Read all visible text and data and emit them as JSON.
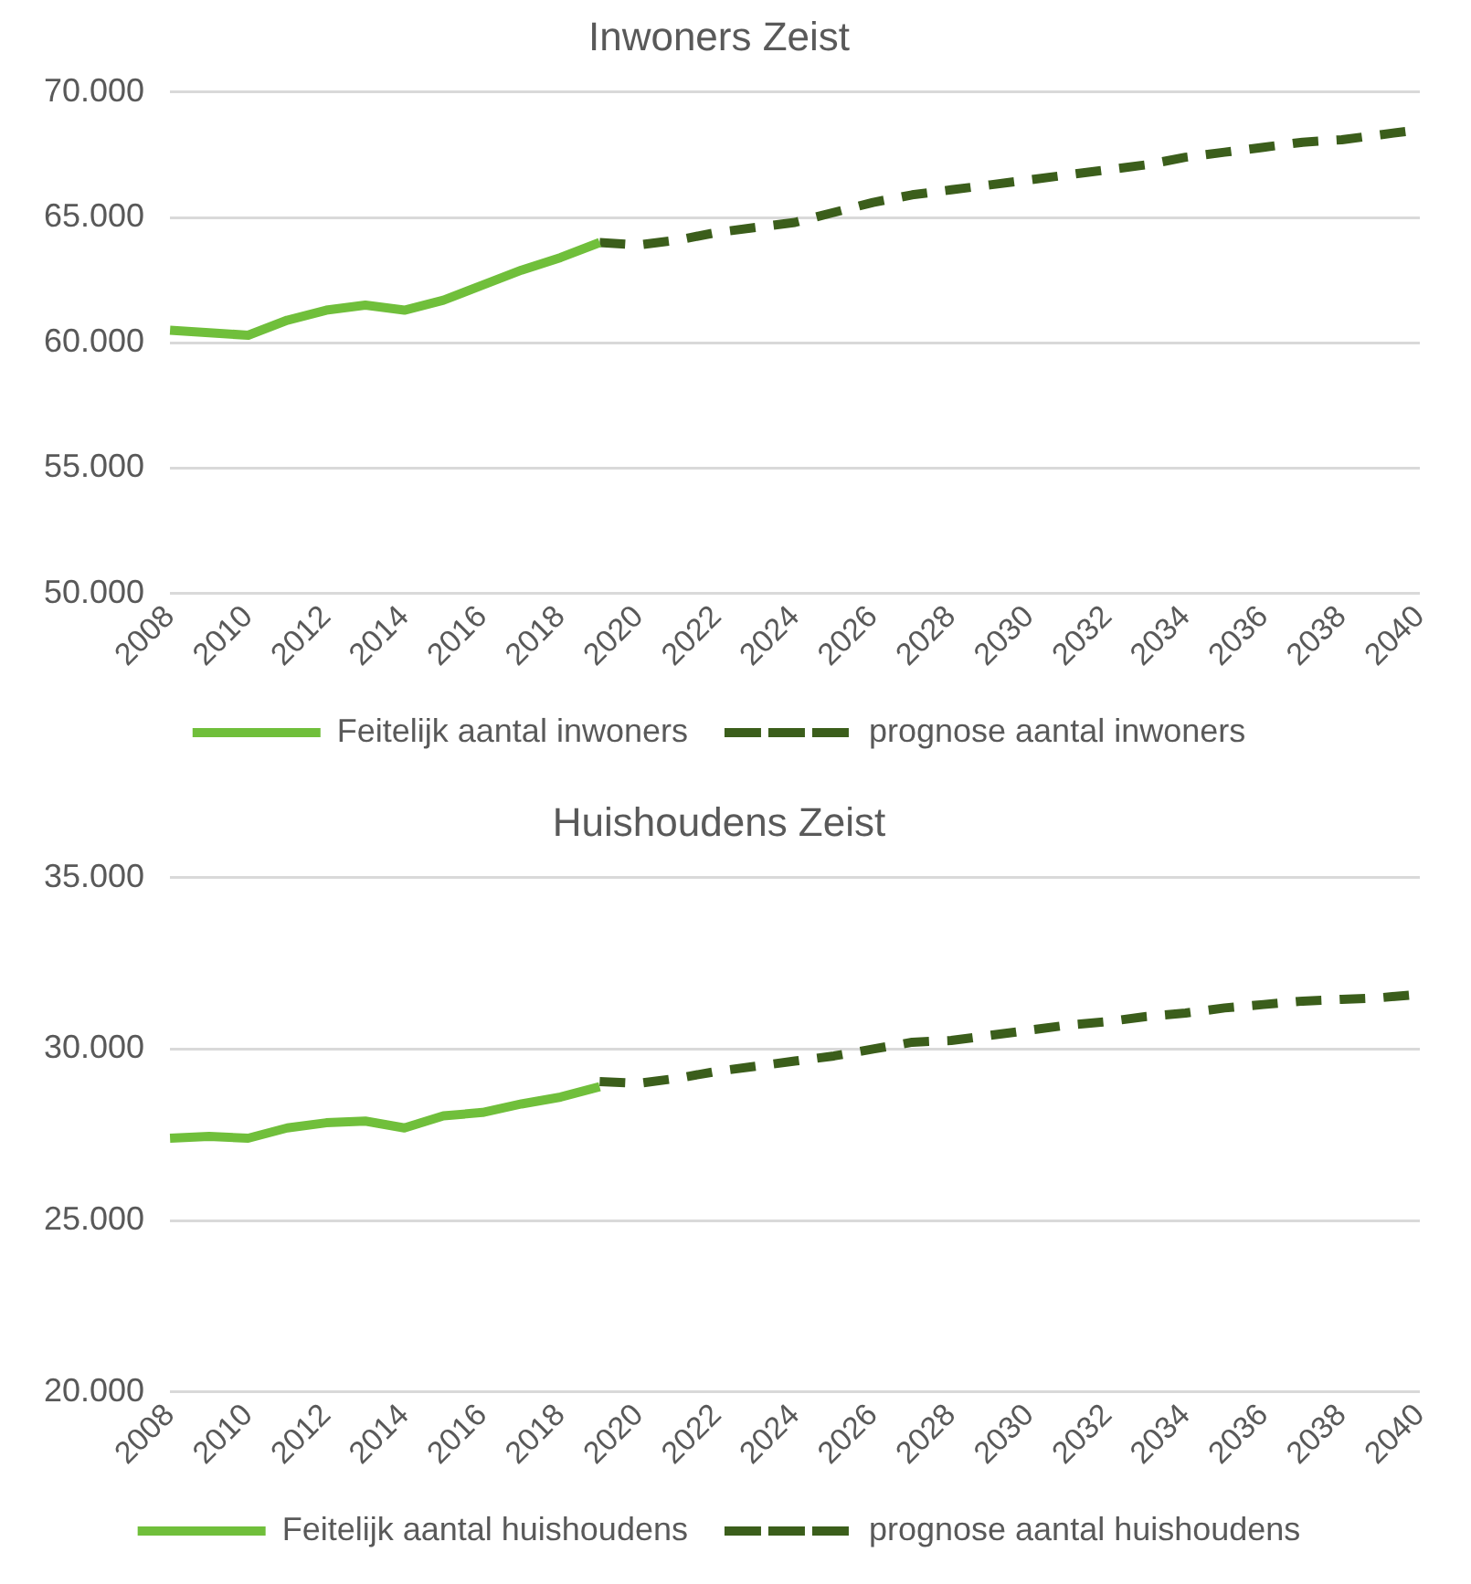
{
  "chart_data": [
    {
      "type": "line",
      "title": "Inwoners Zeist",
      "categories": [
        "2008",
        null,
        "2010",
        null,
        "2012",
        null,
        "2014",
        null,
        "2016",
        null,
        "2018",
        null,
        "2020",
        null,
        "2022",
        null,
        "2024",
        null,
        "2026",
        null,
        "2028",
        null,
        "2030",
        null,
        "2032",
        null,
        "2034",
        null,
        "2036",
        null,
        "2038",
        null,
        "2040"
      ],
      "series": [
        {
          "name": "Feitelijk aantal inwoners",
          "color": "#70bf3b",
          "line_style": "solid",
          "values": [
            60500,
            60400,
            60300,
            60900,
            61300,
            61500,
            61300,
            61700,
            62300,
            62900,
            63400,
            64000,
            null,
            null,
            null,
            null,
            null,
            null,
            null,
            null,
            null,
            null,
            null,
            null,
            null,
            null,
            null,
            null,
            null,
            null,
            null,
            null,
            null
          ]
        },
        {
          "name": "prognose aantal inwoners",
          "color": "#3b5e1b",
          "line_style": "dashed",
          "values": [
            null,
            null,
            null,
            null,
            null,
            null,
            null,
            null,
            null,
            null,
            null,
            64000,
            63900,
            64100,
            64400,
            64600,
            64800,
            65200,
            65600,
            65900,
            66100,
            66300,
            66500,
            66700,
            66900,
            67100,
            67400,
            67600,
            67800,
            68000,
            68100,
            68300,
            68500
          ]
        }
      ],
      "ylim": [
        50000,
        70000
      ],
      "yticks": [
        {
          "value": 50000,
          "label": "50.000"
        },
        {
          "value": 55000,
          "label": "55.000"
        },
        {
          "value": 60000,
          "label": "60.000"
        },
        {
          "value": 65000,
          "label": "65.000"
        },
        {
          "value": 70000,
          "label": "70.000"
        }
      ],
      "grid": "y",
      "legend": "bottom",
      "marker": "none"
    },
    {
      "type": "line",
      "title": "Huishoudens Zeist",
      "categories": [
        "2008",
        null,
        "2010",
        null,
        "2012",
        null,
        "2014",
        null,
        "2016",
        null,
        "2018",
        null,
        "2020",
        null,
        "2022",
        null,
        "2024",
        null,
        "2026",
        null,
        "2028",
        null,
        "2030",
        null,
        "2032",
        null,
        "2034",
        null,
        "2036",
        null,
        "2038",
        null,
        "2040"
      ],
      "series": [
        {
          "name": "Feitelijk aantal huishoudens",
          "color": "#70bf3b",
          "line_style": "solid",
          "values": [
            27400,
            27450,
            27400,
            27700,
            27850,
            27900,
            27700,
            28050,
            28150,
            28400,
            28600,
            28900,
            null,
            null,
            null,
            null,
            null,
            null,
            null,
            null,
            null,
            null,
            null,
            null,
            null,
            null,
            null,
            null,
            null,
            null,
            null,
            null,
            null
          ]
        },
        {
          "name": "prognose aantal huishoudens",
          "color": "#3b5e1b",
          "line_style": "dashed",
          "values": [
            null,
            null,
            null,
            null,
            null,
            null,
            null,
            null,
            null,
            null,
            null,
            29050,
            29000,
            29150,
            29350,
            29500,
            29650,
            29800,
            30000,
            30200,
            30250,
            30400,
            30550,
            30700,
            30800,
            30950,
            31050,
            31200,
            31300,
            31400,
            31450,
            31500,
            31600
          ]
        }
      ],
      "ylim": [
        20000,
        35000
      ],
      "yticks": [
        {
          "value": 20000,
          "label": "20.000"
        },
        {
          "value": 25000,
          "label": "25.000"
        },
        {
          "value": 30000,
          "label": "30.000"
        },
        {
          "value": 35000,
          "label": "35.000"
        }
      ],
      "grid": "y",
      "legend": "bottom",
      "marker": "none"
    }
  ]
}
